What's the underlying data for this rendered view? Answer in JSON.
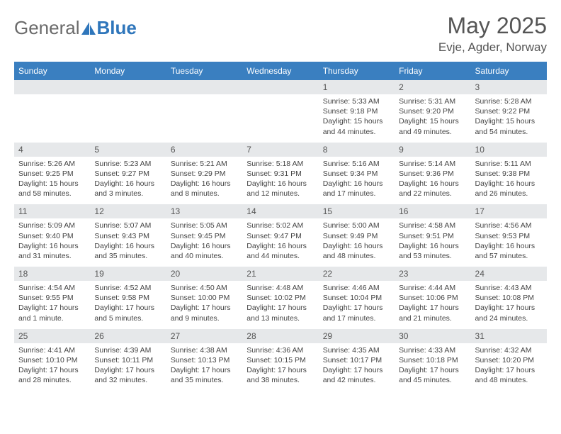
{
  "brand": {
    "word1": "General",
    "word2": "Blue",
    "accent": "#2f76bb",
    "gray": "#6a6a6a"
  },
  "title": "May 2025",
  "location": "Evje, Agder, Norway",
  "header_bg": "#3a7fc0",
  "daynum_bg": "#e6e8ea",
  "weekdays": [
    "Sunday",
    "Monday",
    "Tuesday",
    "Wednesday",
    "Thursday",
    "Friday",
    "Saturday"
  ],
  "weeks": [
    [
      {
        "n": "",
        "lines": []
      },
      {
        "n": "",
        "lines": []
      },
      {
        "n": "",
        "lines": []
      },
      {
        "n": "",
        "lines": []
      },
      {
        "n": "1",
        "lines": [
          "Sunrise: 5:33 AM",
          "Sunset: 9:18 PM",
          "Daylight: 15 hours and 44 minutes."
        ]
      },
      {
        "n": "2",
        "lines": [
          "Sunrise: 5:31 AM",
          "Sunset: 9:20 PM",
          "Daylight: 15 hours and 49 minutes."
        ]
      },
      {
        "n": "3",
        "lines": [
          "Sunrise: 5:28 AM",
          "Sunset: 9:22 PM",
          "Daylight: 15 hours and 54 minutes."
        ]
      }
    ],
    [
      {
        "n": "4",
        "lines": [
          "Sunrise: 5:26 AM",
          "Sunset: 9:25 PM",
          "Daylight: 15 hours and 58 minutes."
        ]
      },
      {
        "n": "5",
        "lines": [
          "Sunrise: 5:23 AM",
          "Sunset: 9:27 PM",
          "Daylight: 16 hours and 3 minutes."
        ]
      },
      {
        "n": "6",
        "lines": [
          "Sunrise: 5:21 AM",
          "Sunset: 9:29 PM",
          "Daylight: 16 hours and 8 minutes."
        ]
      },
      {
        "n": "7",
        "lines": [
          "Sunrise: 5:18 AM",
          "Sunset: 9:31 PM",
          "Daylight: 16 hours and 12 minutes."
        ]
      },
      {
        "n": "8",
        "lines": [
          "Sunrise: 5:16 AM",
          "Sunset: 9:34 PM",
          "Daylight: 16 hours and 17 minutes."
        ]
      },
      {
        "n": "9",
        "lines": [
          "Sunrise: 5:14 AM",
          "Sunset: 9:36 PM",
          "Daylight: 16 hours and 22 minutes."
        ]
      },
      {
        "n": "10",
        "lines": [
          "Sunrise: 5:11 AM",
          "Sunset: 9:38 PM",
          "Daylight: 16 hours and 26 minutes."
        ]
      }
    ],
    [
      {
        "n": "11",
        "lines": [
          "Sunrise: 5:09 AM",
          "Sunset: 9:40 PM",
          "Daylight: 16 hours and 31 minutes."
        ]
      },
      {
        "n": "12",
        "lines": [
          "Sunrise: 5:07 AM",
          "Sunset: 9:43 PM",
          "Daylight: 16 hours and 35 minutes."
        ]
      },
      {
        "n": "13",
        "lines": [
          "Sunrise: 5:05 AM",
          "Sunset: 9:45 PM",
          "Daylight: 16 hours and 40 minutes."
        ]
      },
      {
        "n": "14",
        "lines": [
          "Sunrise: 5:02 AM",
          "Sunset: 9:47 PM",
          "Daylight: 16 hours and 44 minutes."
        ]
      },
      {
        "n": "15",
        "lines": [
          "Sunrise: 5:00 AM",
          "Sunset: 9:49 PM",
          "Daylight: 16 hours and 48 minutes."
        ]
      },
      {
        "n": "16",
        "lines": [
          "Sunrise: 4:58 AM",
          "Sunset: 9:51 PM",
          "Daylight: 16 hours and 53 minutes."
        ]
      },
      {
        "n": "17",
        "lines": [
          "Sunrise: 4:56 AM",
          "Sunset: 9:53 PM",
          "Daylight: 16 hours and 57 minutes."
        ]
      }
    ],
    [
      {
        "n": "18",
        "lines": [
          "Sunrise: 4:54 AM",
          "Sunset: 9:55 PM",
          "Daylight: 17 hours and 1 minute."
        ]
      },
      {
        "n": "19",
        "lines": [
          "Sunrise: 4:52 AM",
          "Sunset: 9:58 PM",
          "Daylight: 17 hours and 5 minutes."
        ]
      },
      {
        "n": "20",
        "lines": [
          "Sunrise: 4:50 AM",
          "Sunset: 10:00 PM",
          "Daylight: 17 hours and 9 minutes."
        ]
      },
      {
        "n": "21",
        "lines": [
          "Sunrise: 4:48 AM",
          "Sunset: 10:02 PM",
          "Daylight: 17 hours and 13 minutes."
        ]
      },
      {
        "n": "22",
        "lines": [
          "Sunrise: 4:46 AM",
          "Sunset: 10:04 PM",
          "Daylight: 17 hours and 17 minutes."
        ]
      },
      {
        "n": "23",
        "lines": [
          "Sunrise: 4:44 AM",
          "Sunset: 10:06 PM",
          "Daylight: 17 hours and 21 minutes."
        ]
      },
      {
        "n": "24",
        "lines": [
          "Sunrise: 4:43 AM",
          "Sunset: 10:08 PM",
          "Daylight: 17 hours and 24 minutes."
        ]
      }
    ],
    [
      {
        "n": "25",
        "lines": [
          "Sunrise: 4:41 AM",
          "Sunset: 10:10 PM",
          "Daylight: 17 hours and 28 minutes."
        ]
      },
      {
        "n": "26",
        "lines": [
          "Sunrise: 4:39 AM",
          "Sunset: 10:11 PM",
          "Daylight: 17 hours and 32 minutes."
        ]
      },
      {
        "n": "27",
        "lines": [
          "Sunrise: 4:38 AM",
          "Sunset: 10:13 PM",
          "Daylight: 17 hours and 35 minutes."
        ]
      },
      {
        "n": "28",
        "lines": [
          "Sunrise: 4:36 AM",
          "Sunset: 10:15 PM",
          "Daylight: 17 hours and 38 minutes."
        ]
      },
      {
        "n": "29",
        "lines": [
          "Sunrise: 4:35 AM",
          "Sunset: 10:17 PM",
          "Daylight: 17 hours and 42 minutes."
        ]
      },
      {
        "n": "30",
        "lines": [
          "Sunrise: 4:33 AM",
          "Sunset: 10:18 PM",
          "Daylight: 17 hours and 45 minutes."
        ]
      },
      {
        "n": "31",
        "lines": [
          "Sunrise: 4:32 AM",
          "Sunset: 10:20 PM",
          "Daylight: 17 hours and 48 minutes."
        ]
      }
    ]
  ]
}
